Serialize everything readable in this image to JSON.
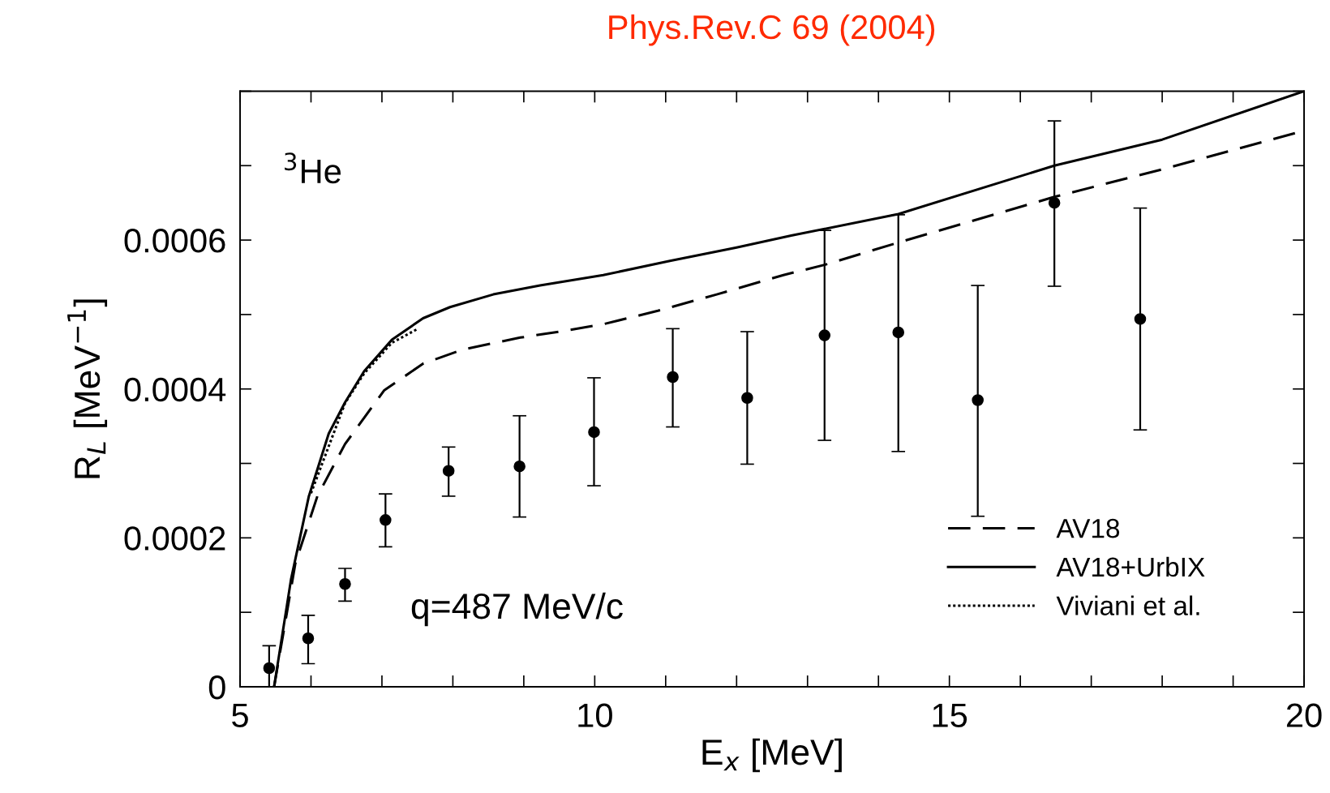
{
  "chart_data": {
    "type": "line",
    "title": "Phys.Rev.C 69 (2004)",
    "xlabel": "E$_{x}$ [MeV]",
    "ylabel": "R$_{L}$ [MeV$^{−1}$]",
    "annotations": [
      "$^{3}$He",
      "q=487 MeV/c"
    ],
    "xlim": [
      5,
      20
    ],
    "xticks": [
      5,
      {
        "value": 6,
        "label": null
      },
      {
        "value": 7,
        "label": null
      },
      {
        "value": 8,
        "label": null
      },
      {
        "value": 9,
        "label": null
      },
      10,
      {
        "value": 11,
        "label": null
      },
      {
        "value": 12,
        "label": null
      },
      {
        "value": 13,
        "label": null
      },
      {
        "value": 14,
        "label": null
      },
      15,
      {
        "value": 16,
        "label": null
      },
      {
        "value": 17,
        "label": null
      },
      {
        "value": 18,
        "label": null
      },
      {
        "value": 19,
        "label": null
      },
      20
    ],
    "ylim": [
      0,
      0.0008
    ],
    "yticks": [
      0,
      {
        "value": 0.0001,
        "label": null
      },
      0.0002,
      {
        "value": 0.0003,
        "label": null
      },
      0.0004,
      {
        "value": 0.0005,
        "label": null
      },
      0.0006,
      {
        "value": 0.0007,
        "label": null
      },
      {
        "value": 0.0008,
        "label": null
      }
    ],
    "grid": false,
    "legend": "bottom right",
    "series": [
      {
        "type": "scatter",
        "color": "#000000",
        "marker": "circle",
        "x": [
          5.41,
          5.96,
          6.48,
          7.05,
          7.94,
          8.94,
          9.99,
          11.1,
          12.15,
          13.24,
          14.28,
          15.4,
          16.48,
          17.69
        ],
        "values": [
          2.5e-05,
          6.5e-05,
          0.000138,
          0.000224,
          0.00029,
          0.000296,
          0.000342,
          0.000416,
          0.000388,
          0.000472,
          0.000476,
          0.000385,
          0.00065,
          0.000494
        ],
        "errors": [
          [
            0,
            5.5e-05
          ],
          [
            3.1e-05,
            9.6e-05
          ],
          [
            0.000115,
            0.000159
          ],
          [
            0.000188,
            0.000259
          ],
          [
            0.000256,
            0.000322
          ],
          [
            0.000228,
            0.000364
          ],
          [
            0.00027,
            0.000415
          ],
          [
            0.000349,
            0.000481
          ],
          [
            0.000299,
            0.000477
          ],
          [
            0.000331,
            0.000613
          ],
          [
            0.000316,
            0.000634
          ],
          [
            0.000229,
            0.000539
          ],
          [
            0.000538,
            0.00076
          ],
          [
            0.000345,
            0.000643
          ]
        ]
      },
      {
        "name": "AV18",
        "color": "#000000",
        "line_style": "dashed",
        "x": [
          5.48,
          5.78,
          6.09,
          6.48,
          7.03,
          7.58,
          8.14,
          8.95,
          9.5,
          10.12,
          10.89,
          11.72,
          12.66,
          13.25,
          14.29,
          16.48,
          18.12,
          20
        ],
        "values": [
          0,
          0.000166,
          0.000256,
          0.000326,
          0.000398,
          0.000434,
          0.000453,
          0.000469,
          0.000477,
          0.000487,
          0.000505,
          0.000527,
          0.000553,
          0.000567,
          0.000597,
          0.000658,
          0.000698,
          0.000747
        ]
      },
      {
        "name": "AV18+UrbIX",
        "color": "#000000",
        "line_style": "solid",
        "x": [
          5.48,
          5.72,
          5.97,
          6.25,
          6.48,
          6.75,
          7.14,
          7.58,
          7.96,
          8.57,
          9.23,
          10.12,
          11.06,
          12.0,
          12.77,
          14.28,
          16.48,
          18.0,
          20
        ],
        "values": [
          0,
          0.000145,
          0.000256,
          0.00034,
          0.000382,
          0.000424,
          0.000466,
          0.000495,
          0.00051,
          0.000527,
          0.000539,
          0.000553,
          0.000572,
          0.00059,
          0.000606,
          0.000635,
          0.0007,
          0.000735,
          0.0008
        ]
      },
      {
        "name": "Viviani et al.",
        "color": "#000000",
        "line_style": "dotted",
        "x": [
          6.0,
          6.48,
          6.75,
          7.14,
          7.51
        ],
        "values": [
          0.00026,
          0.000381,
          0.000421,
          0.000462,
          0.000481
        ]
      }
    ]
  }
}
